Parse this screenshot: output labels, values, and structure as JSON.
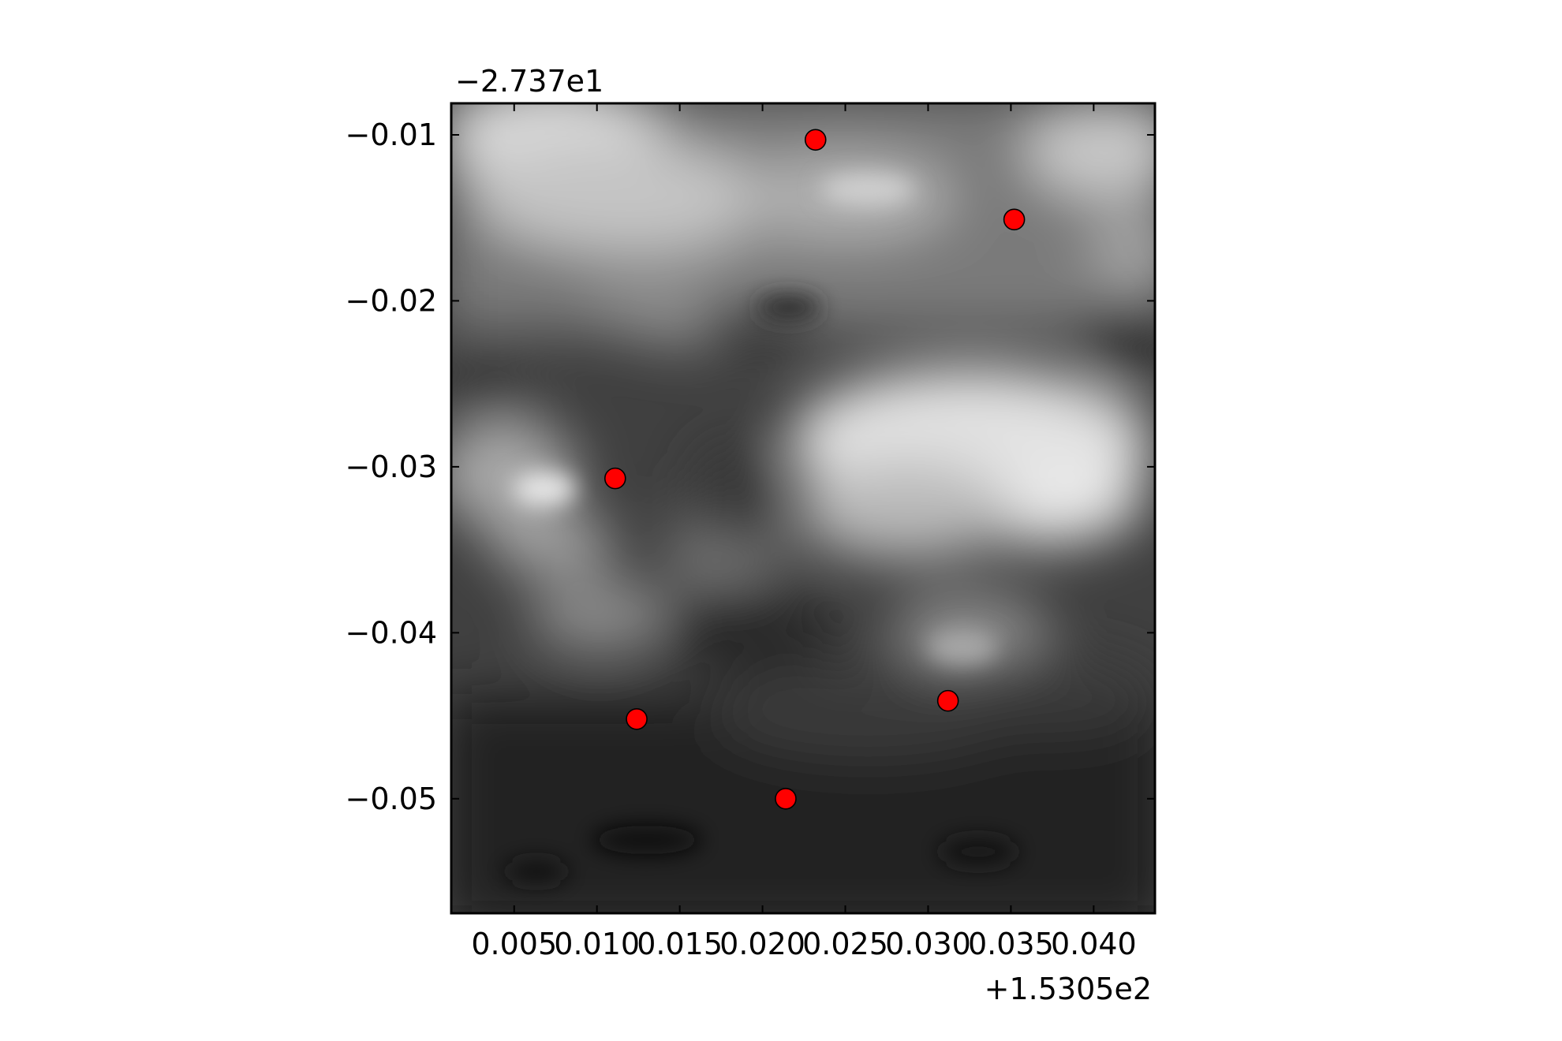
{
  "chart_data": {
    "type": "scatter",
    "background": "grayscale contour map",
    "x_offset_label": "+1.5305e2",
    "y_offset_label": "−2.737e1",
    "xlim": [
      0.0012,
      0.0437
    ],
    "ylim": [
      -0.0569,
      -0.0081
    ],
    "x_ticks": [
      {
        "value": 0.005,
        "label": "0.005"
      },
      {
        "value": 0.01,
        "label": "0.010"
      },
      {
        "value": 0.015,
        "label": "0.015"
      },
      {
        "value": 0.02,
        "label": "0.020"
      },
      {
        "value": 0.025,
        "label": "0.025"
      },
      {
        "value": 0.03,
        "label": "0.030"
      },
      {
        "value": 0.035,
        "label": "0.035"
      },
      {
        "value": 0.04,
        "label": "0.040"
      }
    ],
    "y_ticks": [
      {
        "value": -0.01,
        "label": "−0.01"
      },
      {
        "value": -0.02,
        "label": "−0.02"
      },
      {
        "value": -0.03,
        "label": "−0.03"
      },
      {
        "value": -0.04,
        "label": "−0.04"
      },
      {
        "value": -0.05,
        "label": "−0.05"
      }
    ],
    "points": [
      {
        "x": 0.0232,
        "y": -0.0103
      },
      {
        "x": 0.0352,
        "y": -0.0151
      },
      {
        "x": 0.0111,
        "y": -0.0307
      },
      {
        "x": 0.0124,
        "y": -0.0452
      },
      {
        "x": 0.0214,
        "y": -0.05
      },
      {
        "x": 0.0312,
        "y": -0.0441
      }
    ],
    "marker_color": "#ff0000",
    "marker_edge": "#000000",
    "grid": false,
    "legend": false
  }
}
